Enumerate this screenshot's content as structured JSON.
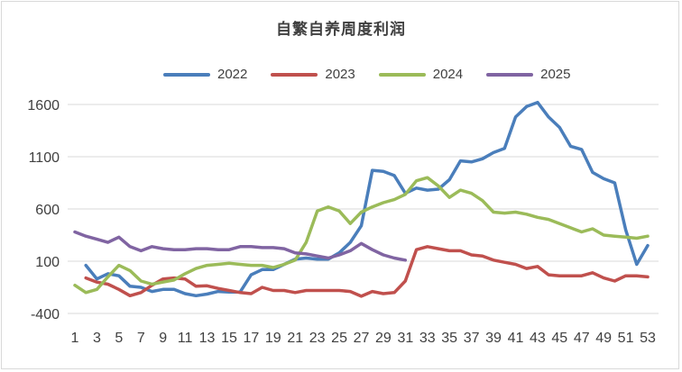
{
  "chart_data": {
    "type": "line",
    "title": "自繁自养周度利润",
    "xlabel": "",
    "ylabel": "",
    "ylim": [
      -400,
      1600
    ],
    "yticks": [
      -400,
      100,
      600,
      1100,
      1600
    ],
    "xlim": [
      1,
      53
    ],
    "xticks": [
      1,
      3,
      5,
      7,
      9,
      11,
      13,
      15,
      17,
      19,
      21,
      23,
      25,
      27,
      29,
      31,
      33,
      35,
      37,
      39,
      41,
      43,
      45,
      47,
      49,
      51,
      53
    ],
    "grid": "horizontal",
    "legend_position": "top",
    "series": [
      {
        "name": "2022",
        "color": "#4a7ebb",
        "x": [
          2,
          3,
          4,
          5,
          6,
          7,
          8,
          9,
          10,
          11,
          12,
          13,
          14,
          15,
          16,
          17,
          18,
          19,
          20,
          21,
          22,
          23,
          24,
          25,
          26,
          27,
          28,
          29,
          30,
          31,
          32,
          33,
          34,
          35,
          36,
          37,
          38,
          39,
          40,
          41,
          42,
          43,
          44,
          45,
          46,
          47,
          48,
          49,
          50,
          51,
          52,
          53
        ],
        "y": [
          60,
          -70,
          -20,
          -40,
          -140,
          -150,
          -190,
          -170,
          -170,
          -210,
          -230,
          -215,
          -190,
          -195,
          -195,
          -30,
          20,
          20,
          70,
          120,
          130,
          120,
          120,
          180,
          280,
          440,
          970,
          960,
          920,
          750,
          800,
          780,
          790,
          880,
          1060,
          1050,
          1080,
          1140,
          1180,
          1480,
          1580,
          1620,
          1480,
          1380,
          1200,
          1170,
          950,
          890,
          850,
          400,
          70,
          250
        ]
      },
      {
        "name": "2023",
        "color": "#c0504d",
        "x": [
          2,
          3,
          4,
          5,
          6,
          7,
          8,
          9,
          10,
          11,
          12,
          13,
          14,
          15,
          16,
          17,
          18,
          19,
          20,
          21,
          22,
          23,
          24,
          25,
          26,
          27,
          28,
          29,
          30,
          31,
          32,
          33,
          34,
          35,
          36,
          37,
          38,
          39,
          40,
          41,
          42,
          43,
          44,
          45,
          46,
          47,
          48,
          49,
          50,
          51,
          52,
          53
        ],
        "y": [
          -60,
          -100,
          -120,
          -170,
          -230,
          -200,
          -130,
          -70,
          -60,
          -70,
          -140,
          -135,
          -160,
          -180,
          -200,
          -210,
          -150,
          -180,
          -180,
          -200,
          -180,
          -180,
          -180,
          -180,
          -190,
          -235,
          -190,
          -210,
          -200,
          -90,
          210,
          240,
          220,
          200,
          200,
          160,
          150,
          110,
          90,
          70,
          30,
          50,
          -30,
          -40,
          -40,
          -40,
          -10,
          -60,
          -90,
          -40,
          -40,
          -50
        ]
      },
      {
        "name": "2024",
        "color": "#9bbb59",
        "x": [
          1,
          2,
          3,
          4,
          5,
          6,
          7,
          8,
          9,
          10,
          11,
          12,
          13,
          14,
          15,
          16,
          17,
          18,
          19,
          20,
          21,
          22,
          23,
          24,
          25,
          26,
          27,
          28,
          29,
          30,
          31,
          32,
          33,
          34,
          35,
          36,
          37,
          38,
          39,
          40,
          41,
          42,
          43,
          44,
          45,
          46,
          47,
          48,
          49,
          50,
          51,
          52,
          53
        ],
        "y": [
          -130,
          -200,
          -170,
          -50,
          60,
          10,
          -90,
          -120,
          -100,
          -80,
          -20,
          30,
          60,
          70,
          80,
          70,
          60,
          60,
          40,
          70,
          110,
          280,
          580,
          620,
          580,
          460,
          570,
          620,
          660,
          690,
          740,
          870,
          900,
          820,
          710,
          780,
          750,
          680,
          570,
          560,
          570,
          550,
          520,
          500,
          460,
          420,
          380,
          410,
          350,
          340,
          330,
          320,
          340
        ]
      },
      {
        "name": "2025",
        "color": "#8064a2",
        "x": [
          1,
          2,
          3,
          4,
          5,
          6,
          7,
          8,
          9,
          10,
          11,
          12,
          13,
          14,
          15,
          16,
          17,
          18,
          19,
          20,
          21,
          22,
          23,
          24,
          25,
          26,
          27,
          28,
          29,
          30,
          31
        ],
        "y": [
          380,
          340,
          310,
          280,
          330,
          240,
          200,
          240,
          220,
          210,
          210,
          220,
          220,
          210,
          210,
          240,
          240,
          230,
          230,
          220,
          180,
          170,
          150,
          130,
          160,
          200,
          270,
          210,
          160,
          130,
          110
        ]
      }
    ]
  }
}
